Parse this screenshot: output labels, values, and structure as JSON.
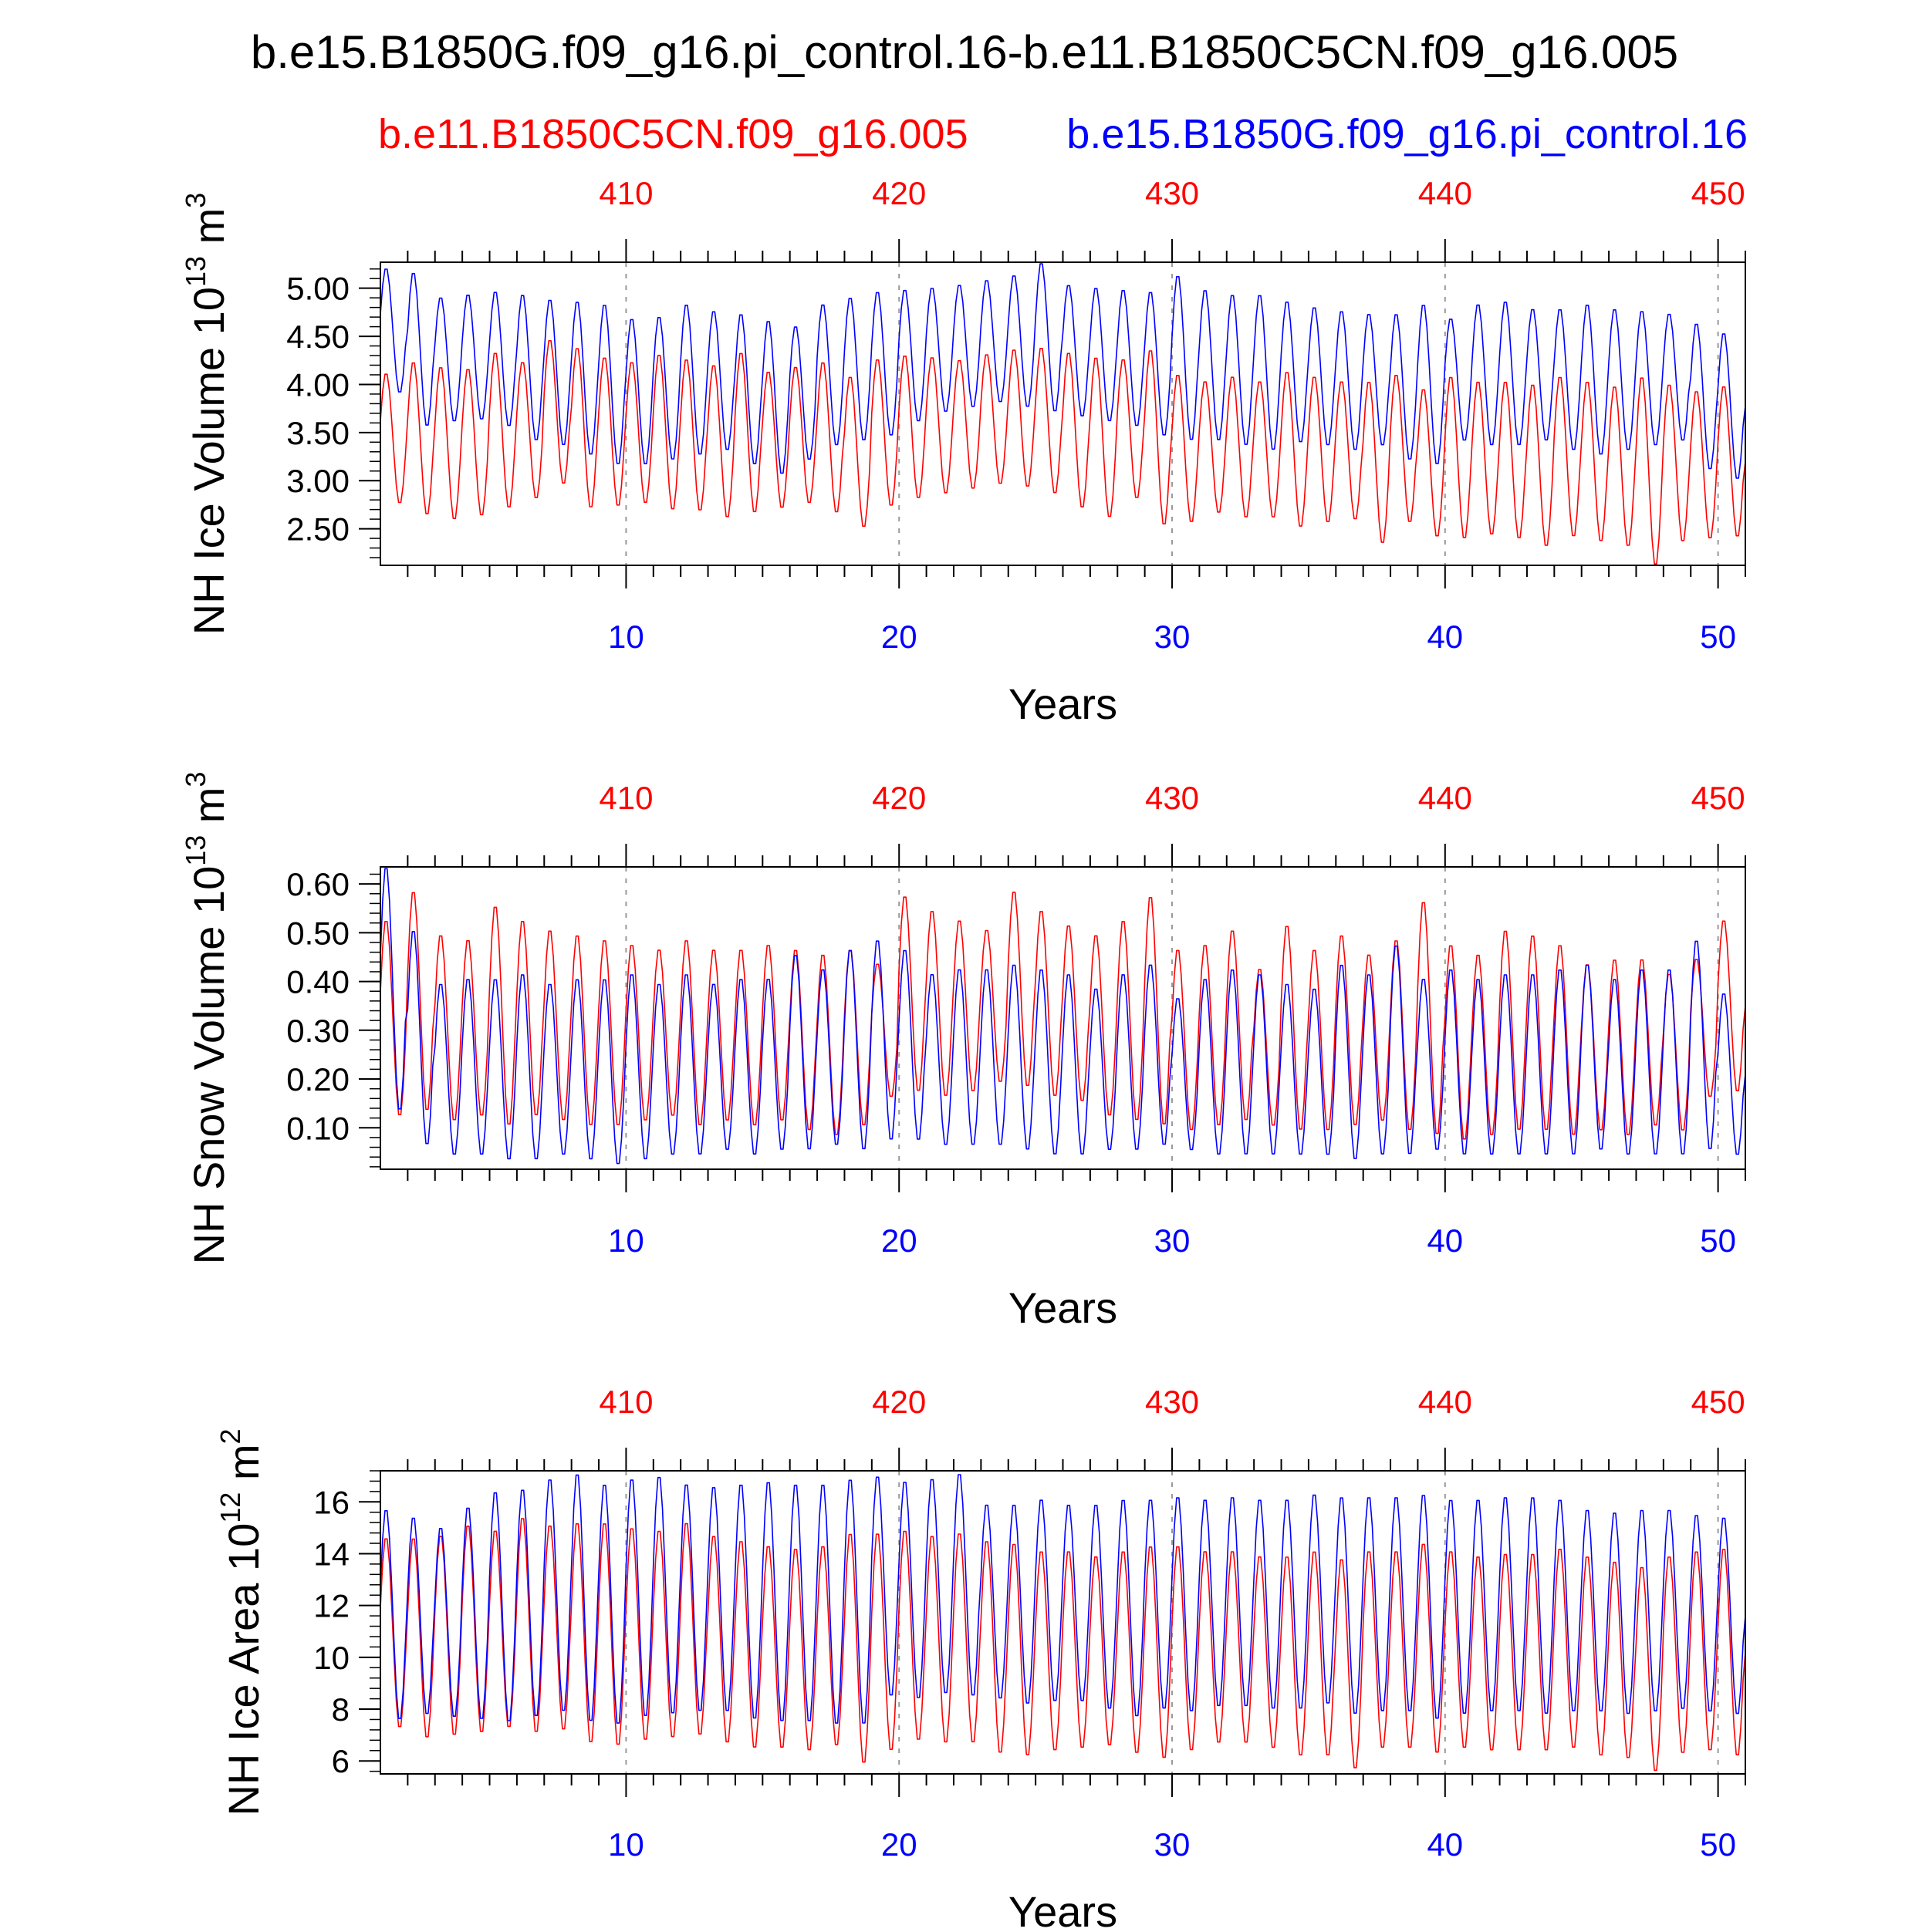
{
  "main_title": "b.e15.B1850G.f09_g16.pi_control.16-b.e11.B1850C5CN.f09_g16.005",
  "legend": {
    "red_case": "b.e11.B1850C5CN.f09_g16.005",
    "blue_case": "b.e15.B1850G.f09_g16.pi_control.16"
  },
  "colors": {
    "red": "#ff0000",
    "blue": "#0000ff",
    "axis": "#000000",
    "grid": "#999999"
  },
  "chart_data": [
    {
      "type": "line",
      "ylabel": "NH Ice Volume",
      "units": "10^13 m^3",
      "unit_base": "10",
      "unit_exp": "13",
      "unit_tail": "m",
      "unit_tail_exp": "3",
      "xlabel": "Years",
      "x_bottom_range": [
        1,
        51
      ],
      "x_bottom_ticks": [
        "10",
        "20",
        "30",
        "40",
        "50"
      ],
      "x_top_ticks": [
        "410",
        "420",
        "430",
        "440",
        "450"
      ],
      "ylim": [
        2.12,
        5.27
      ],
      "yticks": [
        "2.50",
        "3.00",
        "3.50",
        "4.00",
        "4.50",
        "5.00"
      ],
      "series": [
        {
          "name": "b.e11.B1850C5CN.f09_g16.005",
          "color": "red",
          "annual_max": [
            4.13,
            4.25,
            4.2,
            4.18,
            4.35,
            4.25,
            4.48,
            4.4,
            4.3,
            4.25,
            4.33,
            4.28,
            4.22,
            4.35,
            4.15,
            4.2,
            4.25,
            4.1,
            4.28,
            4.32,
            4.3,
            4.27,
            4.33,
            4.38,
            4.4,
            4.35,
            4.3,
            4.28,
            4.38,
            4.12,
            4.05,
            4.1,
            4.05,
            4.15,
            4.1,
            4.05,
            4.05,
            4.12,
            3.97,
            4.1,
            4.05,
            4.05,
            4.02,
            4.1,
            4.05,
            4.0,
            4.1,
            4.02,
            3.95,
            4.0
          ],
          "annual_min": [
            2.75,
            2.63,
            2.58,
            2.62,
            2.7,
            2.8,
            2.95,
            2.7,
            2.72,
            2.75,
            2.68,
            2.67,
            2.6,
            2.65,
            2.7,
            2.75,
            2.65,
            2.5,
            2.72,
            2.8,
            2.85,
            2.9,
            2.95,
            2.92,
            2.85,
            2.7,
            2.6,
            2.8,
            2.52,
            2.55,
            2.65,
            2.6,
            2.6,
            2.5,
            2.55,
            2.58,
            2.33,
            2.55,
            2.4,
            2.38,
            2.42,
            2.38,
            2.3,
            2.4,
            2.35,
            2.3,
            2.1,
            2.35,
            2.38,
            2.4
          ]
        },
        {
          "name": "b.e15.B1850G.f09_g16.pi_control.16",
          "color": "blue",
          "annual_max": [
            5.22,
            5.18,
            4.92,
            4.95,
            4.98,
            4.95,
            4.9,
            4.88,
            4.85,
            4.7,
            4.72,
            4.85,
            4.78,
            4.75,
            4.68,
            4.62,
            4.85,
            4.92,
            4.98,
            5.0,
            5.02,
            5.05,
            5.1,
            5.15,
            5.28,
            5.05,
            5.02,
            5.0,
            4.98,
            5.15,
            5.0,
            4.95,
            4.95,
            4.88,
            4.82,
            4.78,
            4.75,
            4.75,
            4.85,
            4.7,
            4.85,
            4.88,
            4.8,
            4.8,
            4.85,
            4.8,
            4.78,
            4.75,
            4.65,
            4.55
          ],
          "annual_min": [
            3.9,
            3.55,
            3.6,
            3.62,
            3.55,
            3.4,
            3.35,
            3.25,
            3.15,
            3.15,
            3.2,
            3.25,
            3.3,
            3.15,
            3.05,
            3.2,
            3.35,
            3.4,
            3.45,
            3.6,
            3.7,
            3.75,
            3.8,
            3.75,
            3.7,
            3.65,
            3.6,
            3.55,
            3.45,
            3.4,
            3.4,
            3.35,
            3.3,
            3.38,
            3.35,
            3.3,
            3.35,
            3.2,
            3.15,
            3.4,
            3.35,
            3.35,
            3.4,
            3.3,
            3.25,
            3.3,
            3.35,
            3.4,
            3.1,
            3.0
          ]
        }
      ]
    },
    {
      "type": "line",
      "ylabel": "NH Snow Volume",
      "units": "10^13 m^3",
      "unit_base": "10",
      "unit_exp": "13",
      "unit_tail": "m",
      "unit_tail_exp": "3",
      "xlabel": "Years",
      "x_bottom_range": [
        1,
        51
      ],
      "x_bottom_ticks": [
        "10",
        "20",
        "30",
        "40",
        "50"
      ],
      "x_top_ticks": [
        "410",
        "420",
        "430",
        "440",
        "450"
      ],
      "ylim": [
        0.015,
        0.635
      ],
      "yticks": [
        "0.10",
        "0.20",
        "0.30",
        "0.40",
        "0.50",
        "0.60"
      ],
      "series": [
        {
          "name": "b.e11.B1850C5CN.f09_g16.005",
          "color": "red",
          "annual_max": [
            0.53,
            0.59,
            0.5,
            0.49,
            0.56,
            0.53,
            0.51,
            0.5,
            0.49,
            0.48,
            0.47,
            0.49,
            0.47,
            0.47,
            0.48,
            0.47,
            0.46,
            0.47,
            0.44,
            0.58,
            0.55,
            0.53,
            0.51,
            0.59,
            0.55,
            0.52,
            0.5,
            0.53,
            0.58,
            0.47,
            0.48,
            0.51,
            0.43,
            0.52,
            0.47,
            0.5,
            0.46,
            0.49,
            0.57,
            0.48,
            0.46,
            0.51,
            0.5,
            0.48,
            0.44,
            0.45,
            0.45,
            0.42,
            0.45,
            0.53
          ],
          "annual_min": [
            0.12,
            0.13,
            0.11,
            0.12,
            0.1,
            0.12,
            0.11,
            0.1,
            0.1,
            0.11,
            0.12,
            0.1,
            0.11,
            0.1,
            0.11,
            0.09,
            0.08,
            0.1,
            0.16,
            0.17,
            0.16,
            0.17,
            0.19,
            0.18,
            0.16,
            0.15,
            0.12,
            0.11,
            0.1,
            0.09,
            0.1,
            0.11,
            0.1,
            0.09,
            0.09,
            0.1,
            0.11,
            0.09,
            0.08,
            0.07,
            0.08,
            0.09,
            0.09,
            0.08,
            0.09,
            0.08,
            0.1,
            0.09,
            0.16,
            0.17
          ]
        },
        {
          "name": "b.e15.B1850G.f09_g16.pi_control.16",
          "color": "blue",
          "annual_max": [
            0.64,
            0.51,
            0.4,
            0.41,
            0.41,
            0.42,
            0.4,
            0.41,
            0.41,
            0.42,
            0.4,
            0.42,
            0.4,
            0.41,
            0.41,
            0.46,
            0.43,
            0.47,
            0.49,
            0.47,
            0.42,
            0.43,
            0.43,
            0.44,
            0.43,
            0.42,
            0.39,
            0.42,
            0.44,
            0.37,
            0.41,
            0.43,
            0.42,
            0.4,
            0.39,
            0.44,
            0.42,
            0.48,
            0.41,
            0.43,
            0.41,
            0.42,
            0.42,
            0.43,
            0.44,
            0.41,
            0.43,
            0.43,
            0.49,
            0.38
          ],
          "annual_min": [
            0.13,
            0.06,
            0.04,
            0.04,
            0.03,
            0.03,
            0.04,
            0.03,
            0.02,
            0.03,
            0.04,
            0.04,
            0.05,
            0.04,
            0.05,
            0.05,
            0.06,
            0.05,
            0.07,
            0.07,
            0.06,
            0.06,
            0.06,
            0.05,
            0.04,
            0.04,
            0.05,
            0.05,
            0.06,
            0.05,
            0.04,
            0.04,
            0.04,
            0.04,
            0.04,
            0.03,
            0.04,
            0.04,
            0.05,
            0.04,
            0.04,
            0.04,
            0.04,
            0.04,
            0.05,
            0.04,
            0.04,
            0.04,
            0.05,
            0.04
          ]
        }
      ]
    },
    {
      "type": "line",
      "ylabel": "NH Ice Area",
      "units": "10^12 m^2",
      "unit_base": "10",
      "unit_exp": "12",
      "unit_tail": "m",
      "unit_tail_exp": "2",
      "xlabel": "Years",
      "x_bottom_range": [
        1,
        51
      ],
      "x_bottom_ticks": [
        "10",
        "20",
        "30",
        "40",
        "50"
      ],
      "x_top_ticks": [
        "410",
        "420",
        "430",
        "440",
        "450"
      ],
      "ylim": [
        5.5,
        17.2
      ],
      "yticks": [
        "6",
        "8",
        "10",
        "12",
        "14",
        "16"
      ],
      "series": [
        {
          "name": "b.e11.B1850C5CN.f09_g16.005",
          "color": "red",
          "annual_max": [
            14.7,
            14.7,
            14.8,
            15.2,
            15.0,
            15.5,
            15.2,
            15.3,
            15.3,
            15.1,
            15.0,
            15.3,
            14.8,
            14.6,
            14.4,
            14.3,
            14.4,
            14.9,
            14.9,
            15.0,
            14.8,
            14.9,
            14.6,
            14.5,
            14.2,
            14.2,
            14.0,
            14.2,
            14.4,
            14.4,
            14.2,
            14.2,
            14.0,
            14.0,
            14.2,
            13.9,
            14.2,
            14.2,
            14.5,
            14.2,
            14.0,
            14.1,
            14.1,
            14.3,
            14.0,
            13.8,
            13.6,
            14.0,
            14.2,
            14.3
          ],
          "annual_min": [
            7.2,
            6.8,
            6.9,
            7.0,
            7.2,
            7.0,
            7.1,
            6.6,
            6.5,
            6.7,
            6.8,
            6.9,
            6.6,
            6.4,
            6.4,
            6.3,
            6.5,
            5.8,
            6.3,
            6.7,
            6.6,
            6.6,
            6.2,
            6.1,
            6.3,
            6.4,
            6.5,
            6.2,
            6.0,
            6.3,
            6.6,
            6.6,
            6.4,
            6.1,
            6.1,
            5.6,
            6.4,
            6.4,
            6.2,
            6.4,
            6.3,
            6.3,
            6.3,
            6.4,
            6.1,
            6.0,
            5.5,
            6.2,
            6.3,
            6.1
          ]
        },
        {
          "name": "b.e15.B1850G.f09_g16.pi_control.16",
          "color": "blue",
          "annual_max": [
            15.8,
            15.5,
            15.1,
            15.9,
            16.5,
            16.6,
            17.0,
            17.2,
            16.8,
            17.0,
            17.1,
            16.8,
            16.7,
            16.8,
            16.9,
            16.8,
            16.8,
            17.0,
            17.1,
            16.9,
            17.0,
            17.2,
            16.0,
            16.0,
            16.2,
            16.0,
            16.0,
            16.2,
            16.2,
            16.3,
            16.2,
            16.3,
            16.2,
            16.2,
            16.4,
            16.3,
            16.3,
            16.3,
            16.4,
            16.2,
            16.2,
            16.3,
            16.3,
            16.2,
            15.8,
            15.7,
            15.8,
            15.8,
            15.6,
            15.5
          ],
          "annual_min": [
            7.5,
            7.7,
            7.6,
            7.5,
            7.4,
            7.6,
            7.8,
            7.4,
            7.3,
            7.6,
            7.7,
            7.8,
            7.8,
            7.5,
            7.4,
            7.4,
            7.3,
            7.3,
            8.4,
            8.3,
            8.5,
            8.4,
            8.3,
            8.1,
            8.2,
            8.2,
            7.9,
            7.6,
            7.9,
            7.8,
            8.0,
            8.0,
            7.9,
            7.9,
            8.1,
            7.7,
            7.8,
            7.8,
            7.5,
            7.7,
            7.8,
            7.8,
            7.7,
            7.8,
            7.8,
            7.7,
            7.8,
            7.9,
            7.8,
            7.7
          ]
        }
      ]
    }
  ]
}
